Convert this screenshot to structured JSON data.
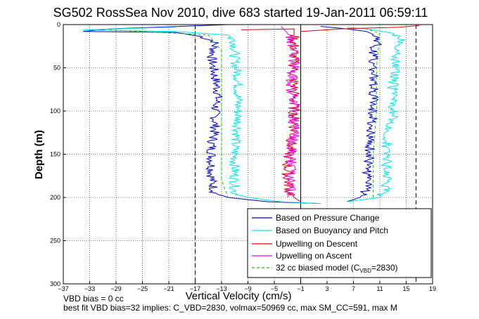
{
  "chart_data": {
    "type": "line",
    "title": "SG502 RossSea Nov 2010, dive 683 started 19-Jan-2011 06:59:11",
    "xlabel": "Vertical Velocity (cm/s)",
    "ylabel": "Depth (m)",
    "xlim": [
      -37,
      19
    ],
    "ylim": [
      0,
      300
    ],
    "y_reversed": true,
    "grid": "dotted",
    "x_ticks": [
      -37,
      -33,
      -29,
      -25,
      -21,
      -17,
      -13,
      -9,
      -5,
      -1,
      3,
      7,
      11,
      15,
      19
    ],
    "y_ticks": [
      0,
      50,
      100,
      150,
      200,
      250,
      300
    ],
    "reference_lines": [
      {
        "x": -17,
        "style": "dashed",
        "color": "#000000"
      },
      {
        "x": -1,
        "style": "solid",
        "color": "#000000"
      },
      {
        "x": 16.5,
        "style": "dashed",
        "color": "#000000"
      }
    ],
    "legend_position": "bottom-right",
    "series": [
      {
        "name": "Based on Pressure Change",
        "color": "#0000cc",
        "descent": [
          [
            -12,
            0
          ],
          [
            -30,
            5
          ],
          [
            -34,
            8
          ],
          [
            -20,
            9
          ],
          [
            -16,
            14
          ],
          [
            -14,
            20
          ],
          [
            -14.5,
            40
          ],
          [
            -14,
            60
          ],
          [
            -13.5,
            80
          ],
          [
            -14,
            100
          ],
          [
            -14,
            120
          ],
          [
            -14.5,
            140
          ],
          [
            -14.5,
            160
          ],
          [
            -14.5,
            180
          ],
          [
            -14,
            195
          ],
          [
            -12,
            200
          ],
          [
            -6,
            205
          ],
          [
            2,
            207
          ]
        ],
        "ascent": [
          [
            6,
            205
          ],
          [
            8,
            200
          ],
          [
            9,
            190
          ],
          [
            9,
            170
          ],
          [
            9.5,
            150
          ],
          [
            9.5,
            130
          ],
          [
            10,
            110
          ],
          [
            10,
            90
          ],
          [
            10,
            70
          ],
          [
            10,
            50
          ],
          [
            10,
            30
          ],
          [
            11,
            15
          ],
          [
            9,
            8
          ],
          [
            6,
            5
          ],
          [
            2,
            2
          ]
        ]
      },
      {
        "name": "Based on Buoyancy and Pitch",
        "color": "#00e5e5",
        "descent": [
          [
            -20,
            3
          ],
          [
            -34,
            6
          ],
          [
            -20,
            8
          ],
          [
            -12,
            12
          ],
          [
            -11,
            20
          ],
          [
            -11,
            40
          ],
          [
            -10.5,
            60
          ],
          [
            -10.5,
            80
          ],
          [
            -10.5,
            100
          ],
          [
            -10.5,
            120
          ],
          [
            -11,
            140
          ],
          [
            -11,
            160
          ],
          [
            -11,
            180
          ],
          [
            -11,
            195
          ],
          [
            -9,
            200
          ],
          [
            -4,
            205
          ],
          [
            2,
            207
          ]
        ],
        "ascent": [
          [
            6,
            205
          ],
          [
            11,
            200
          ],
          [
            12,
            190
          ],
          [
            12,
            170
          ],
          [
            12,
            150
          ],
          [
            12,
            130
          ],
          [
            13,
            110
          ],
          [
            13,
            90
          ],
          [
            13,
            70
          ],
          [
            13.5,
            50
          ],
          [
            13.5,
            30
          ],
          [
            14.5,
            20
          ],
          [
            13,
            10
          ],
          [
            10,
            6
          ],
          [
            6,
            3
          ]
        ]
      },
      {
        "name": "Upwelling on Descent",
        "color": "#e00000",
        "descent": [
          [
            -10,
            6
          ],
          [
            -2,
            5
          ],
          [
            -2,
            20
          ],
          [
            -2,
            40
          ],
          [
            -2,
            60
          ],
          [
            -2,
            80
          ],
          [
            -2,
            100
          ],
          [
            -2,
            120
          ],
          [
            -2.5,
            140
          ],
          [
            -3,
            160
          ],
          [
            -3,
            180
          ],
          [
            -2.5,
            195
          ],
          [
            -2,
            200
          ],
          [
            -1,
            205
          ]
        ],
        "ascent": [
          [
            -1,
            8
          ],
          [
            5,
            5
          ],
          [
            14,
            3
          ],
          [
            17,
            1
          ]
        ]
      },
      {
        "name": "Upwelling on Ascent",
        "color": "#ee00ee",
        "descent": [
          [
            -3,
            200
          ],
          [
            -2.5,
            190
          ],
          [
            -2.5,
            170
          ],
          [
            -2.5,
            150
          ],
          [
            -2,
            130
          ],
          [
            -2,
            110
          ],
          [
            -2,
            90
          ],
          [
            -2.5,
            70
          ],
          [
            -2,
            50
          ],
          [
            -2,
            30
          ],
          [
            -3,
            10
          ],
          [
            -4,
            2
          ]
        ],
        "ascent": []
      },
      {
        "name": "32 cc biased model (C_VBD=2830)",
        "color": "#00cc00",
        "dash": "4,3",
        "descent": [
          [
            -30,
            6
          ],
          [
            -15,
            12
          ],
          [
            -13,
            30
          ],
          [
            -13,
            80
          ],
          [
            -13,
            130
          ],
          [
            -13,
            180
          ],
          [
            -12,
            200
          ]
        ],
        "ascent": [
          [
            10,
            200
          ],
          [
            10,
            150
          ],
          [
            10.5,
            100
          ],
          [
            10.5,
            50
          ],
          [
            11,
            10
          ],
          [
            9,
            5
          ]
        ]
      }
    ]
  },
  "legend_text": {
    "pressure": "Based on Pressure Change",
    "buoyancy": "Based on Buoyancy and Pitch",
    "up_descent": "Upwelling on Descent",
    "up_ascent": "Upwelling on Ascent",
    "model_main": "32 cc biased model (C",
    "model_sub": "VBD",
    "model_tail": "=2830)"
  },
  "notes": {
    "vbd_bias": "VBD bias = 0 cc",
    "best_fit": "best fit VBD bias=32 implies: C_VBD=2830, volmax=50969 cc, max SM_CC=591, max M"
  }
}
